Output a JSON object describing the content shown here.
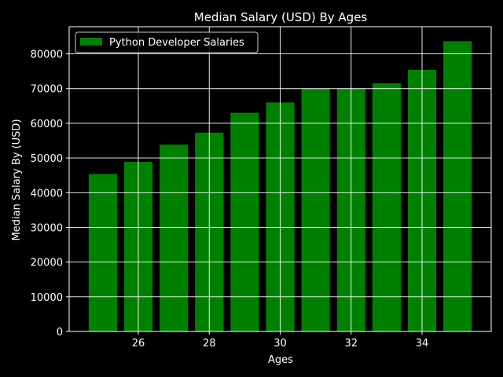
{
  "chart_data": {
    "type": "bar",
    "title": "Median Salary (USD) By Ages",
    "xlabel": "Ages",
    "ylabel": "Median Salary By (USD)",
    "x": [
      25,
      26,
      27,
      28,
      29,
      30,
      31,
      32,
      33,
      34,
      35
    ],
    "series": [
      {
        "name": "Python Developer Salaries",
        "values": [
          45372,
          48876,
          53850,
          57287,
          63016,
          65998,
          70003,
          70000,
          71496,
          75370,
          83640
        ],
        "color": "#008000"
      }
    ],
    "xlim": [
      24.05,
      35.95
    ],
    "ylim": [
      0,
      87822
    ],
    "x_ticks": [
      26,
      28,
      30,
      32,
      34
    ],
    "x_tick_labels": [
      "26",
      "28",
      "30",
      "32",
      "34"
    ],
    "y_ticks": [
      0,
      10000,
      20000,
      30000,
      40000,
      50000,
      60000,
      70000,
      80000
    ],
    "y_tick_labels": [
      "0",
      "10000",
      "20000",
      "30000",
      "40000",
      "50000",
      "60000",
      "70000",
      "80000"
    ],
    "grid": true,
    "legend": "upper-left",
    "background": "#000000",
    "foreground": "#ffffff"
  }
}
